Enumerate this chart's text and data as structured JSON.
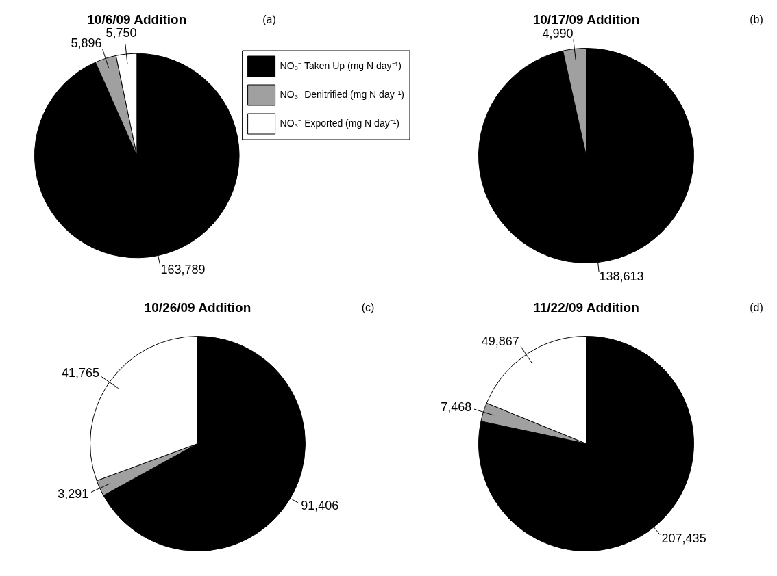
{
  "chart_data": [
    {
      "type": "pie",
      "title": "10/6/09 Addition",
      "annotations": [
        "(a)"
      ],
      "categories": [
        "NO₃⁻ Taken Up (mg N day⁻¹)",
        "NO₃⁻ Denitrified (mg N day⁻¹)",
        "NO₃⁻ Exported (mg N day⁻¹)"
      ],
      "values": [
        163789,
        5896,
        5750
      ],
      "value_labels": [
        "163,789",
        "5,896",
        "5,750"
      ],
      "colors": [
        "#000000",
        "#a0a0a0",
        "#ffffff"
      ],
      "legend": "right"
    },
    {
      "type": "pie",
      "title": "10/17/09 Addition",
      "annotations": [
        "(b)"
      ],
      "categories": [
        null,
        null,
        null
      ],
      "values": [
        138613,
        4990,
        null
      ],
      "value_labels": [
        "138,613",
        "4,990",
        null
      ],
      "colors": [
        "#000000",
        "#a0a0a0",
        "#ffffff"
      ]
    },
    {
      "type": "pie",
      "title": "10/26/09 Addition",
      "annotations": [
        "(c)"
      ],
      "categories": [
        null,
        null,
        null
      ],
      "values": [
        91406,
        3291,
        41765
      ],
      "value_labels": [
        "91,406",
        "3,291",
        "41,765"
      ],
      "colors": [
        "#000000",
        "#a0a0a0",
        "#ffffff"
      ]
    },
    {
      "type": "pie",
      "title": "11/22/09 Addition",
      "annotations": [
        "(d)"
      ],
      "categories": [
        null,
        null,
        null
      ],
      "values": [
        207435,
        7468,
        49867
      ],
      "value_labels": [
        "207,435",
        "7,468",
        "49,867"
      ],
      "colors": [
        "#000000",
        "#a0a0a0",
        "#ffffff"
      ]
    }
  ]
}
